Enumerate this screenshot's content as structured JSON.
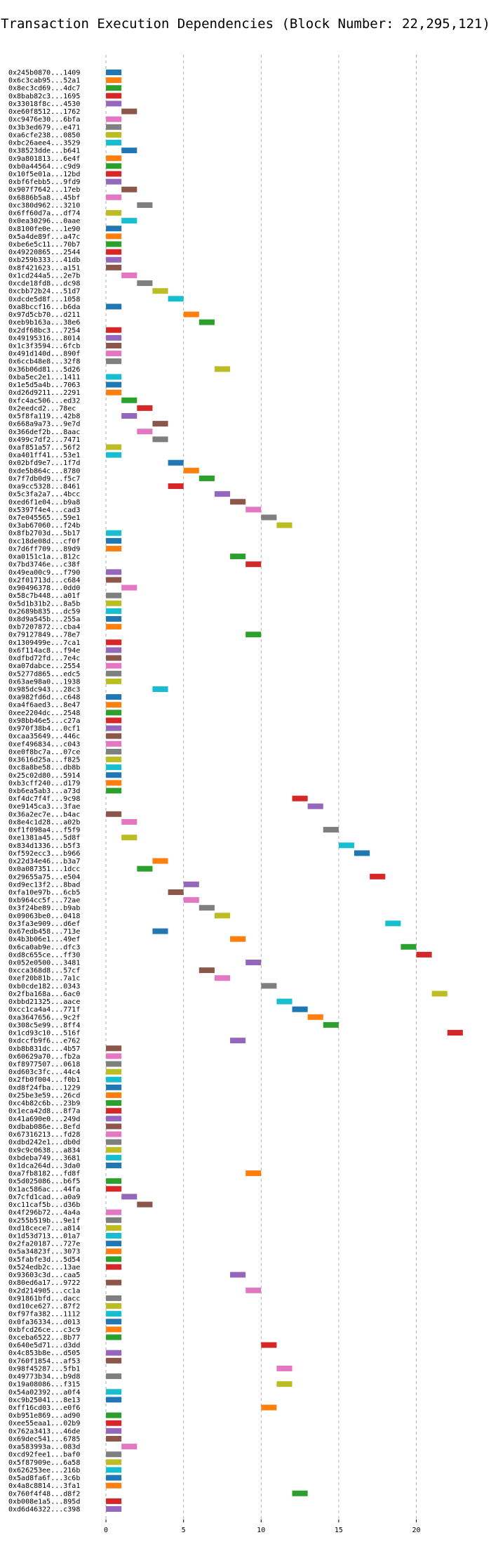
{
  "chart_data": {
    "type": "bar",
    "orientation": "horizontal",
    "title": "Transaction Execution Dependencies (Block Number: 22,295,121)",
    "xlabel": "",
    "ylabel": "",
    "xlim": [
      -0.5,
      24
    ],
    "x_ticks": [
      0,
      5,
      10,
      15,
      20
    ],
    "grid": "x",
    "bar_width": 1,
    "palette": [
      "#1f77b4",
      "#ff7f0e",
      "#2ca02c",
      "#d62728",
      "#9467bd",
      "#8c564b",
      "#e377c2",
      "#7f7f7f",
      "#bcbd22",
      "#17becf"
    ],
    "transactions": [
      {
        "label": "0x245b0870...1409",
        "start": 0
      },
      {
        "label": "0x6c3cab95...52a1",
        "start": 0
      },
      {
        "label": "0x8ec3cd69...4dc7",
        "start": 0
      },
      {
        "label": "0x8bab82c3...1695",
        "start": 0
      },
      {
        "label": "0x33018f8c...4530",
        "start": 0
      },
      {
        "label": "0xe60f8512...1762",
        "start": 1
      },
      {
        "label": "0xc9476e30...6bfa",
        "start": 0
      },
      {
        "label": "0x3b3ed679...e471",
        "start": 0
      },
      {
        "label": "0xa6cfe238...0850",
        "start": 0
      },
      {
        "label": "0xbc26aee4...3529",
        "start": 0
      },
      {
        "label": "0x38523dde...b641",
        "start": 1
      },
      {
        "label": "0x9a801813...6e4f",
        "start": 0
      },
      {
        "label": "0xb0a44564...c9d9",
        "start": 0
      },
      {
        "label": "0x10f5e01a...12bd",
        "start": 0
      },
      {
        "label": "0xbf6febb5...9fd9",
        "start": 0
      },
      {
        "label": "0x907f7642...17eb",
        "start": 1
      },
      {
        "label": "0x6886b5a8...45bf",
        "start": 0
      },
      {
        "label": "0xc380d962...3210",
        "start": 2
      },
      {
        "label": "0x6ff60d7a...df74",
        "start": 0
      },
      {
        "label": "0x0ea30296...0aae",
        "start": 1
      },
      {
        "label": "0x8100fe0e...1e90",
        "start": 0
      },
      {
        "label": "0x5a4de89f...a47c",
        "start": 0
      },
      {
        "label": "0xbe6e5c11...70b7",
        "start": 0
      },
      {
        "label": "0x49220865...2544",
        "start": 0
      },
      {
        "label": "0xb259b333...41db",
        "start": 0
      },
      {
        "label": "0x8f421623...a151",
        "start": 0
      },
      {
        "label": "0x1cd244a5...2e7b",
        "start": 1
      },
      {
        "label": "0xcde18fd8...dc98",
        "start": 2
      },
      {
        "label": "0xcbb72b24...51d7",
        "start": 3
      },
      {
        "label": "0xdcde5d8f...1058",
        "start": 4
      },
      {
        "label": "0xa8bccf16...b6da",
        "start": 0
      },
      {
        "label": "0x97d5cb70...d211",
        "start": 5
      },
      {
        "label": "0xeb9b163a...38e6",
        "start": 6
      },
      {
        "label": "0x2df68bc3...7254",
        "start": 0
      },
      {
        "label": "0x49195316...8014",
        "start": 0
      },
      {
        "label": "0x1c3f3594...6fcb",
        "start": 0
      },
      {
        "label": "0x491d140d...890f",
        "start": 0
      },
      {
        "label": "0x6ccb48e8...32f8",
        "start": 0
      },
      {
        "label": "0x36b06d81...5d26",
        "start": 7
      },
      {
        "label": "0xba5ec2e1...1411",
        "start": 0
      },
      {
        "label": "0x1e5d5a4b...7063",
        "start": 0
      },
      {
        "label": "0xd26d9211...2291",
        "start": 0
      },
      {
        "label": "0xfc4ac506...ed32",
        "start": 1
      },
      {
        "label": "0x2eedcd2...78ec",
        "start": 2
      },
      {
        "label": "0x5f8fa119...42b8",
        "start": 1
      },
      {
        "label": "0x668a9a73...9e7d",
        "start": 3
      },
      {
        "label": "0x366def2b...8aac",
        "start": 2
      },
      {
        "label": "0x499c7df2...7471",
        "start": 3
      },
      {
        "label": "0xaf851a57...56f2",
        "start": 0
      },
      {
        "label": "0xa401ff41...53e1",
        "start": 0
      },
      {
        "label": "0x02bfd9e7...1f7d",
        "start": 4
      },
      {
        "label": "0xde5b864c...8780",
        "start": 5
      },
      {
        "label": "0x7f7db0d9...f5c7",
        "start": 6
      },
      {
        "label": "0xa9cc5328...8461",
        "start": 4
      },
      {
        "label": "0x5c3fa2a7...4bcc",
        "start": 7
      },
      {
        "label": "0xed6f1e04...b9a8",
        "start": 8
      },
      {
        "label": "0x5397f4e4...cad3",
        "start": 9
      },
      {
        "label": "0x7e045565...59e1",
        "start": 10
      },
      {
        "label": "0x3ab67060...f24b",
        "start": 11
      },
      {
        "label": "0x8fb2703d...5b17",
        "start": 0
      },
      {
        "label": "0xc18de08d...cf0f",
        "start": 0
      },
      {
        "label": "0x7d6ff709...89d9",
        "start": 0
      },
      {
        "label": "0xa0151c1a...812c",
        "start": 8
      },
      {
        "label": "0x7bd3746e...c38f",
        "start": 9
      },
      {
        "label": "0x49ea00c9...f790",
        "start": 0
      },
      {
        "label": "0x2f01713d...c684",
        "start": 0
      },
      {
        "label": "0x90496378...0dd0",
        "start": 1
      },
      {
        "label": "0x58c7b448...a01f",
        "start": 0
      },
      {
        "label": "0x5d1b31b2...8a5b",
        "start": 0
      },
      {
        "label": "0x2689b835...dc59",
        "start": 0
      },
      {
        "label": "0x8d9a545b...255a",
        "start": 0
      },
      {
        "label": "0xb7207872...cba4",
        "start": 0
      },
      {
        "label": "0x79127849...78e7",
        "start": 9
      },
      {
        "label": "0x1309499e...7ca1",
        "start": 0
      },
      {
        "label": "0x6f114ac8...f94e",
        "start": 0
      },
      {
        "label": "0xdfbd72fd...7e4c",
        "start": 0
      },
      {
        "label": "0xa07dabce...2554",
        "start": 0
      },
      {
        "label": "0x5277d865...edc5",
        "start": 0
      },
      {
        "label": "0x63ae98a0...1938",
        "start": 0
      },
      {
        "label": "0x985dc943...28c3",
        "start": 3
      },
      {
        "label": "0xa982fd6d...c648",
        "start": 0
      },
      {
        "label": "0xa4f6aed3...8e47",
        "start": 0
      },
      {
        "label": "0xee2204dc...2548",
        "start": 0
      },
      {
        "label": "0x98bb46e5...c27a",
        "start": 0
      },
      {
        "label": "0x970f38b4...0cf1",
        "start": 0
      },
      {
        "label": "0xcaa35649...446c",
        "start": 0
      },
      {
        "label": "0xef496834...c043",
        "start": 0
      },
      {
        "label": "0xe0f8bc7a...07ce",
        "start": 0
      },
      {
        "label": "0x3616d25a...f825",
        "start": 0
      },
      {
        "label": "0xc8a8be58...db8b",
        "start": 0
      },
      {
        "label": "0x25c02d80...5914",
        "start": 0
      },
      {
        "label": "0xb3cff240...d179",
        "start": 0
      },
      {
        "label": "0xb6ea5ab3...a73d",
        "start": 0
      },
      {
        "label": "0xf4dc7f4f...9c98",
        "start": 12
      },
      {
        "label": "0xe9145ca3...3fae",
        "start": 13
      },
      {
        "label": "0x36a2ec7e...b4ac",
        "start": 0
      },
      {
        "label": "0x8e4c1d28...a02b",
        "start": 1
      },
      {
        "label": "0xf1f098a4...f5f9",
        "start": 14
      },
      {
        "label": "0xe1381a45...5d8f",
        "start": 1
      },
      {
        "label": "0x834d1336...b5f3",
        "start": 15
      },
      {
        "label": "0xf592ecc3...b966",
        "start": 16
      },
      {
        "label": "0x22d34e46...b3a7",
        "start": 3
      },
      {
        "label": "0x0a087351...1dcc",
        "start": 2
      },
      {
        "label": "0x29655a75...e504",
        "start": 17
      },
      {
        "label": "0xd9ec13f2...8bad",
        "start": 5
      },
      {
        "label": "0xfa10e97b...6cb5",
        "start": 4
      },
      {
        "label": "0xb964cc5f...72ae",
        "start": 5
      },
      {
        "label": "0x3f24be89...b9ab",
        "start": 6
      },
      {
        "label": "0x09063be0...0418",
        "start": 7
      },
      {
        "label": "0x3fa3e909...d6ef",
        "start": 18
      },
      {
        "label": "0x67edb458...713e",
        "start": 3
      },
      {
        "label": "0x4b3b06e1...49ef",
        "start": 8
      },
      {
        "label": "0x6ca0ab9e...dfc3",
        "start": 19
      },
      {
        "label": "0xd8c655ce...ff30",
        "start": 20
      },
      {
        "label": "0x052e0500...3481",
        "start": 9
      },
      {
        "label": "0xcca368d8...57cf",
        "start": 6
      },
      {
        "label": "0xef20b81b...7a1c",
        "start": 7
      },
      {
        "label": "0xb0cde182...0343",
        "start": 10
      },
      {
        "label": "0x2fba168a...6ac0",
        "start": 21
      },
      {
        "label": "0xbbd21325...aace",
        "start": 11
      },
      {
        "label": "0xcc1ca4a4...771f",
        "start": 12
      },
      {
        "label": "0xa3647656...9c2f",
        "start": 13
      },
      {
        "label": "0x308c5e99...8ff4",
        "start": 14
      },
      {
        "label": "0x1cd93c10...516f",
        "start": 22
      },
      {
        "label": "0xdccfb9f6...e762",
        "start": 8
      },
      {
        "label": "0xb8b831dc...4b57",
        "start": 0
      },
      {
        "label": "0x60629a70...fb2a",
        "start": 0
      },
      {
        "label": "0xf8977507...0618",
        "start": 0
      },
      {
        "label": "0xd603c3fc...44c4",
        "start": 0
      },
      {
        "label": "0x2fb0f004...f0b1",
        "start": 0
      },
      {
        "label": "0xd8f24fba...1229",
        "start": 0
      },
      {
        "label": "0x25be3e59...26cd",
        "start": 0
      },
      {
        "label": "0xc4b82c6b...23b9",
        "start": 0
      },
      {
        "label": "0x1eca42d8...8f7a",
        "start": 0
      },
      {
        "label": "0x41a690e0...249d",
        "start": 0
      },
      {
        "label": "0xdbab086e...8efd",
        "start": 0
      },
      {
        "label": "0x67316213...fd28",
        "start": 0
      },
      {
        "label": "0xdbd242e1...db0d",
        "start": 0
      },
      {
        "label": "0x9c9c0638...a834",
        "start": 0
      },
      {
        "label": "0xbdeba749...3681",
        "start": 0
      },
      {
        "label": "0x1dca264d...3da0",
        "start": 0
      },
      {
        "label": "0xa7fb8182...fd8f",
        "start": 9
      },
      {
        "label": "0x5d025086...b6f5",
        "start": 0
      },
      {
        "label": "0x1ac586ac...44fa",
        "start": 0
      },
      {
        "label": "0x7cfd1cad...a0a9",
        "start": 1
      },
      {
        "label": "0xc11caf5b...d36b",
        "start": 2
      },
      {
        "label": "0x4f296b72...4a4a",
        "start": 0
      },
      {
        "label": "0x255b519b...9e1f",
        "start": 0
      },
      {
        "label": "0xd18cece7...a814",
        "start": 0
      },
      {
        "label": "0x1d53d713...01a7",
        "start": 0
      },
      {
        "label": "0x2fa20187...727e",
        "start": 0
      },
      {
        "label": "0x5a34823f...3073",
        "start": 0
      },
      {
        "label": "0x5fabfe3d...5d54",
        "start": 0
      },
      {
        "label": "0x524edb2c...13ae",
        "start": 0
      },
      {
        "label": "0x93603c3d...caa5",
        "start": 8
      },
      {
        "label": "0x80ed6a17...9722",
        "start": 0
      },
      {
        "label": "0x2d214905...cc1a",
        "start": 9
      },
      {
        "label": "0x91861bfd...dacc",
        "start": 0
      },
      {
        "label": "0xd10ce627...87f2",
        "start": 0
      },
      {
        "label": "0xf97fa382...1112",
        "start": 0
      },
      {
        "label": "0x0fa36334...d013",
        "start": 0
      },
      {
        "label": "0xbfcd26ce...c3c9",
        "start": 0
      },
      {
        "label": "0xceba6522...8b77",
        "start": 0
      },
      {
        "label": "0x640e5d71...d3dd",
        "start": 10
      },
      {
        "label": "0x4c853b8e...d505",
        "start": 0
      },
      {
        "label": "0x760f1854...af53",
        "start": 0
      },
      {
        "label": "0x98f45287...5fb1",
        "start": 11
      },
      {
        "label": "0x49773b34...b9d8",
        "start": 0
      },
      {
        "label": "0x19a08086...f315",
        "start": 11
      },
      {
        "label": "0x54a02392...a0f4",
        "start": 0
      },
      {
        "label": "0xc9b25041...8e13",
        "start": 0
      },
      {
        "label": "0xff16cd03...e0f6",
        "start": 10
      },
      {
        "label": "0xb951e869...ad90",
        "start": 0
      },
      {
        "label": "0xee55eaa1...02b9",
        "start": 0
      },
      {
        "label": "0x762a3413...46de",
        "start": 0
      },
      {
        "label": "0x69dec541...6785",
        "start": 0
      },
      {
        "label": "0xa583993a...083d",
        "start": 1
      },
      {
        "label": "0xcd92fee1...baf0",
        "start": 0
      },
      {
        "label": "0x5f87909e...6a58",
        "start": 0
      },
      {
        "label": "0x626253ee...216b",
        "start": 0
      },
      {
        "label": "0x5ad8fa6f...3c6b",
        "start": 0
      },
      {
        "label": "0x4a8c8814...3fa1",
        "start": 0
      },
      {
        "label": "0x760f4f48...d8f2",
        "start": 12
      },
      {
        "label": "0xb008e1a5...895d",
        "start": 0
      },
      {
        "label": "0xd6d46322...c398",
        "start": 0
      }
    ]
  }
}
